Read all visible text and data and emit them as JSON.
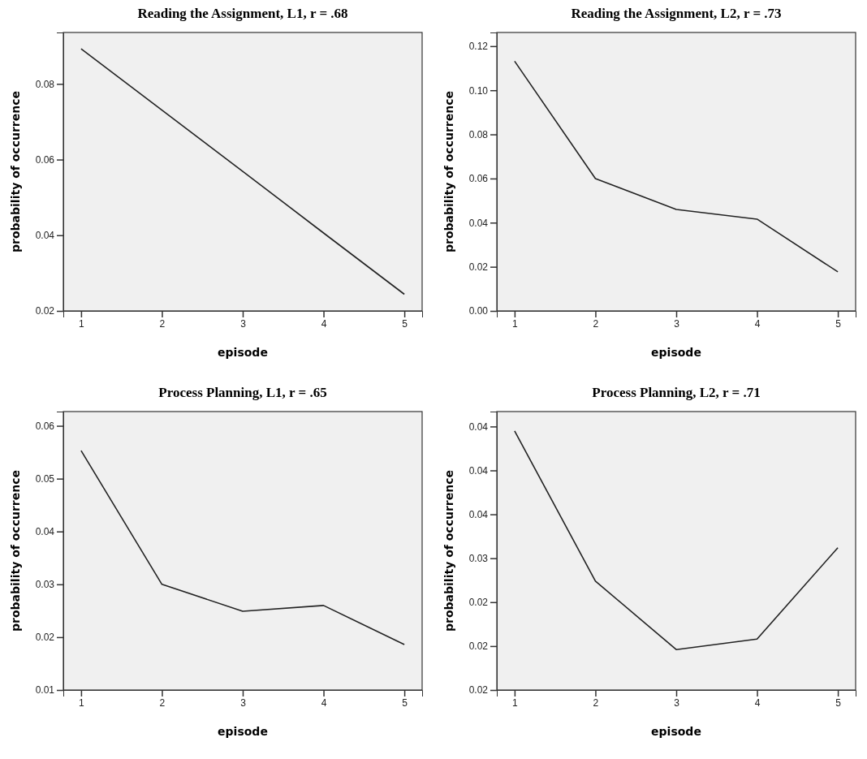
{
  "chart_data": [
    {
      "type": "line",
      "title": "Reading the Assignment, L1, r = .68",
      "xlabel": "episode",
      "ylabel": "probability of occurrence",
      "x": [
        1,
        2,
        3,
        4,
        5
      ],
      "xlim": [
        0.78,
        5.22
      ],
      "xticks": [
        1,
        2,
        3,
        4,
        5
      ],
      "ylim": [
        0.02,
        0.0936
      ],
      "yticks": [
        0.02,
        0.04,
        0.06,
        0.08
      ],
      "series": [
        {
          "color": "#222222",
          "values": [
            0.0893,
            0.0731,
            0.0569,
            0.0406,
            0.0244
          ]
        }
      ]
    },
    {
      "type": "line",
      "title": "Reading the Assignment, L2, r = .73",
      "xlabel": "episode",
      "ylabel": "probability of occurrence",
      "x": [
        1,
        2,
        3,
        4,
        5
      ],
      "xlim": [
        0.78,
        5.22
      ],
      "xticks": [
        1,
        2,
        3,
        4,
        5
      ],
      "ylim": [
        0,
        0.1262
      ],
      "yticks": [
        {
          "value": 0,
          "label": "0.00"
        },
        0.02,
        0.04,
        0.06,
        0.08,
        {
          "value": 0.1,
          "label": "0.10"
        },
        0.12
      ],
      "series": [
        {
          "color": "#222222",
          "values": [
            0.1132,
            0.06,
            0.046,
            0.0416,
            0.0177
          ]
        }
      ]
    },
    {
      "type": "line",
      "title": "Process Planning, L1, r = .65",
      "xlabel": "episode",
      "ylabel": "probability of occurrence",
      "x": [
        1,
        2,
        3,
        4,
        5
      ],
      "xlim": [
        0.78,
        5.22
      ],
      "xticks": [
        1,
        2,
        3,
        4,
        5
      ],
      "ylim": [
        0.01,
        0.0627
      ],
      "yticks": [
        0.01,
        0.02,
        0.03,
        0.04,
        0.05,
        0.06
      ],
      "series": [
        {
          "color": "#222222",
          "values": [
            0.0553,
            0.03,
            0.0249,
            0.026,
            0.0186
          ]
        }
      ]
    },
    {
      "type": "line",
      "title": "Process Planning, L2, r = .71",
      "xlabel": "episode",
      "ylabel": "probability of occurrence",
      "x": [
        1,
        2,
        3,
        4,
        5
      ],
      "xlim": [
        0.78,
        5.22
      ],
      "xticks": [
        1,
        2,
        3,
        4,
        5
      ],
      "ylim": [
        0.015,
        0.0467
      ],
      "yticks": [
        {
          "value": 0.015,
          "label": "0.02"
        },
        {
          "value": 0.02,
          "label": "0.02"
        },
        {
          "value": 0.025,
          "label": "0.02"
        },
        {
          "value": 0.03,
          "label": "0.03"
        },
        {
          "value": 0.035,
          "label": "0.04"
        },
        {
          "value": 0.04,
          "label": "0.04"
        },
        {
          "value": 0.045,
          "label": "0.04"
        }
      ],
      "series": [
        {
          "color": "#222222",
          "values": [
            0.0445,
            0.0274,
            0.0196,
            0.0208,
            0.0312
          ]
        }
      ]
    }
  ]
}
